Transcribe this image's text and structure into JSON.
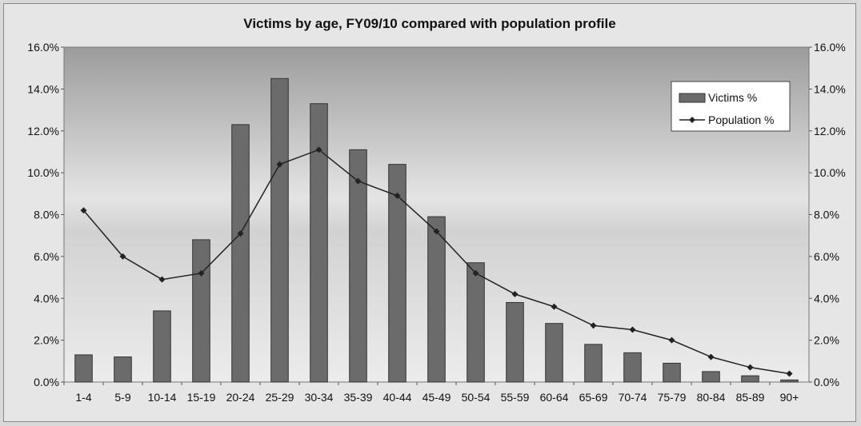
{
  "chart_data": {
    "type": "bar",
    "title": "Victims by age, FY09/10 compared with population profile",
    "categories": [
      "1-4",
      "5-9",
      "10-14",
      "15-19",
      "20-24",
      "25-29",
      "30-34",
      "35-39",
      "40-44",
      "45-49",
      "50-54",
      "55-59",
      "60-64",
      "65-69",
      "70-74",
      "75-79",
      "80-84",
      "85-89",
      "90+"
    ],
    "series": [
      {
        "name": "Victims %",
        "type": "bar",
        "color": "#6b6b6b",
        "values": [
          1.3,
          1.2,
          3.4,
          6.8,
          12.3,
          14.5,
          13.3,
          11.1,
          10.4,
          7.9,
          5.7,
          3.8,
          2.8,
          1.8,
          1.4,
          0.9,
          0.5,
          0.3,
          0.1
        ]
      },
      {
        "name": "Population %",
        "type": "line",
        "color": "#222222",
        "values": [
          8.2,
          6.0,
          4.9,
          5.2,
          7.1,
          10.4,
          11.1,
          9.6,
          8.9,
          7.2,
          5.2,
          4.2,
          3.6,
          2.7,
          2.5,
          2.0,
          1.2,
          0.7,
          0.4
        ]
      }
    ],
    "ylim": [
      0,
      16
    ],
    "y_ticks": [
      "0.0%",
      "2.0%",
      "4.0%",
      "6.0%",
      "8.0%",
      "10.0%",
      "12.0%",
      "14.0%",
      "16.0%"
    ],
    "y2_ticks": [
      "0.0%",
      "2.0%",
      "4.0%",
      "6.0%",
      "8.0%",
      "10.0%",
      "12.0%",
      "14.0%",
      "16.0%"
    ],
    "grid": false,
    "legend_position": "top-right",
    "colors": {
      "plot_background_top": "#9c9c9c",
      "plot_background_bottom": "#ececec"
    }
  }
}
